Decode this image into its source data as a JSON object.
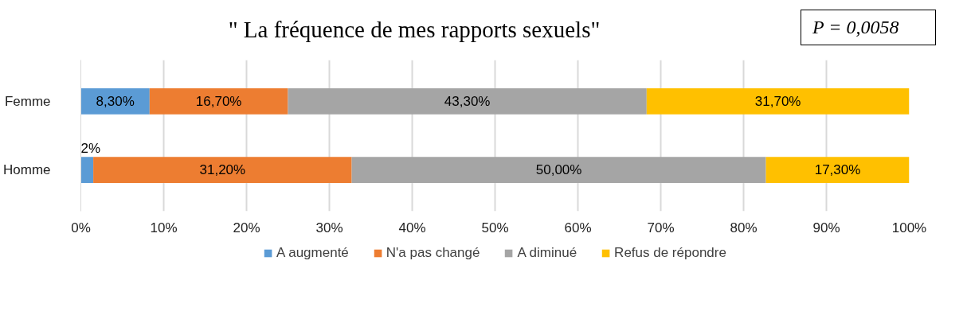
{
  "chart_data": {
    "type": "bar",
    "orientation": "horizontal",
    "stacked": true,
    "title": "\" La fréquence de mes rapports sexuels\"",
    "annotations": [
      "P = 0,0058"
    ],
    "categories": [
      "Femme",
      "Homme"
    ],
    "series": [
      {
        "name": "A augmenté",
        "color": "#5b9bd5",
        "values": [
          8.3,
          1.5
        ],
        "value_labels": [
          "8,30%",
          "2%"
        ]
      },
      {
        "name": "N'a pas changé",
        "color": "#ed7d31",
        "values": [
          16.7,
          31.2
        ],
        "value_labels": [
          "16,70%",
          "31,20%"
        ]
      },
      {
        "name": "A diminué",
        "color": "#a5a5a5",
        "values": [
          43.3,
          50.0
        ],
        "value_labels": [
          "43,30%",
          "50,00%"
        ]
      },
      {
        "name": "Refus de répondre",
        "color": "#ffc000",
        "values": [
          31.7,
          17.3
        ],
        "value_labels": [
          "31,70%",
          "17,30%"
        ]
      }
    ],
    "xlim": [
      0,
      100
    ],
    "xticks": [
      {
        "value": 0,
        "label": "0%"
      },
      {
        "value": 10,
        "label": "10%"
      },
      {
        "value": 20,
        "label": "20%"
      },
      {
        "value": 30,
        "label": "30%"
      },
      {
        "value": 40,
        "label": "40%"
      },
      {
        "value": 50,
        "label": "50%"
      },
      {
        "value": 60,
        "label": "60%"
      },
      {
        "value": 70,
        "label": "70%"
      },
      {
        "value": 80,
        "label": "80%"
      },
      {
        "value": 90,
        "label": "90%"
      },
      {
        "value": 100,
        "label": "100%"
      }
    ],
    "grid": "x",
    "legend": "bottom"
  }
}
